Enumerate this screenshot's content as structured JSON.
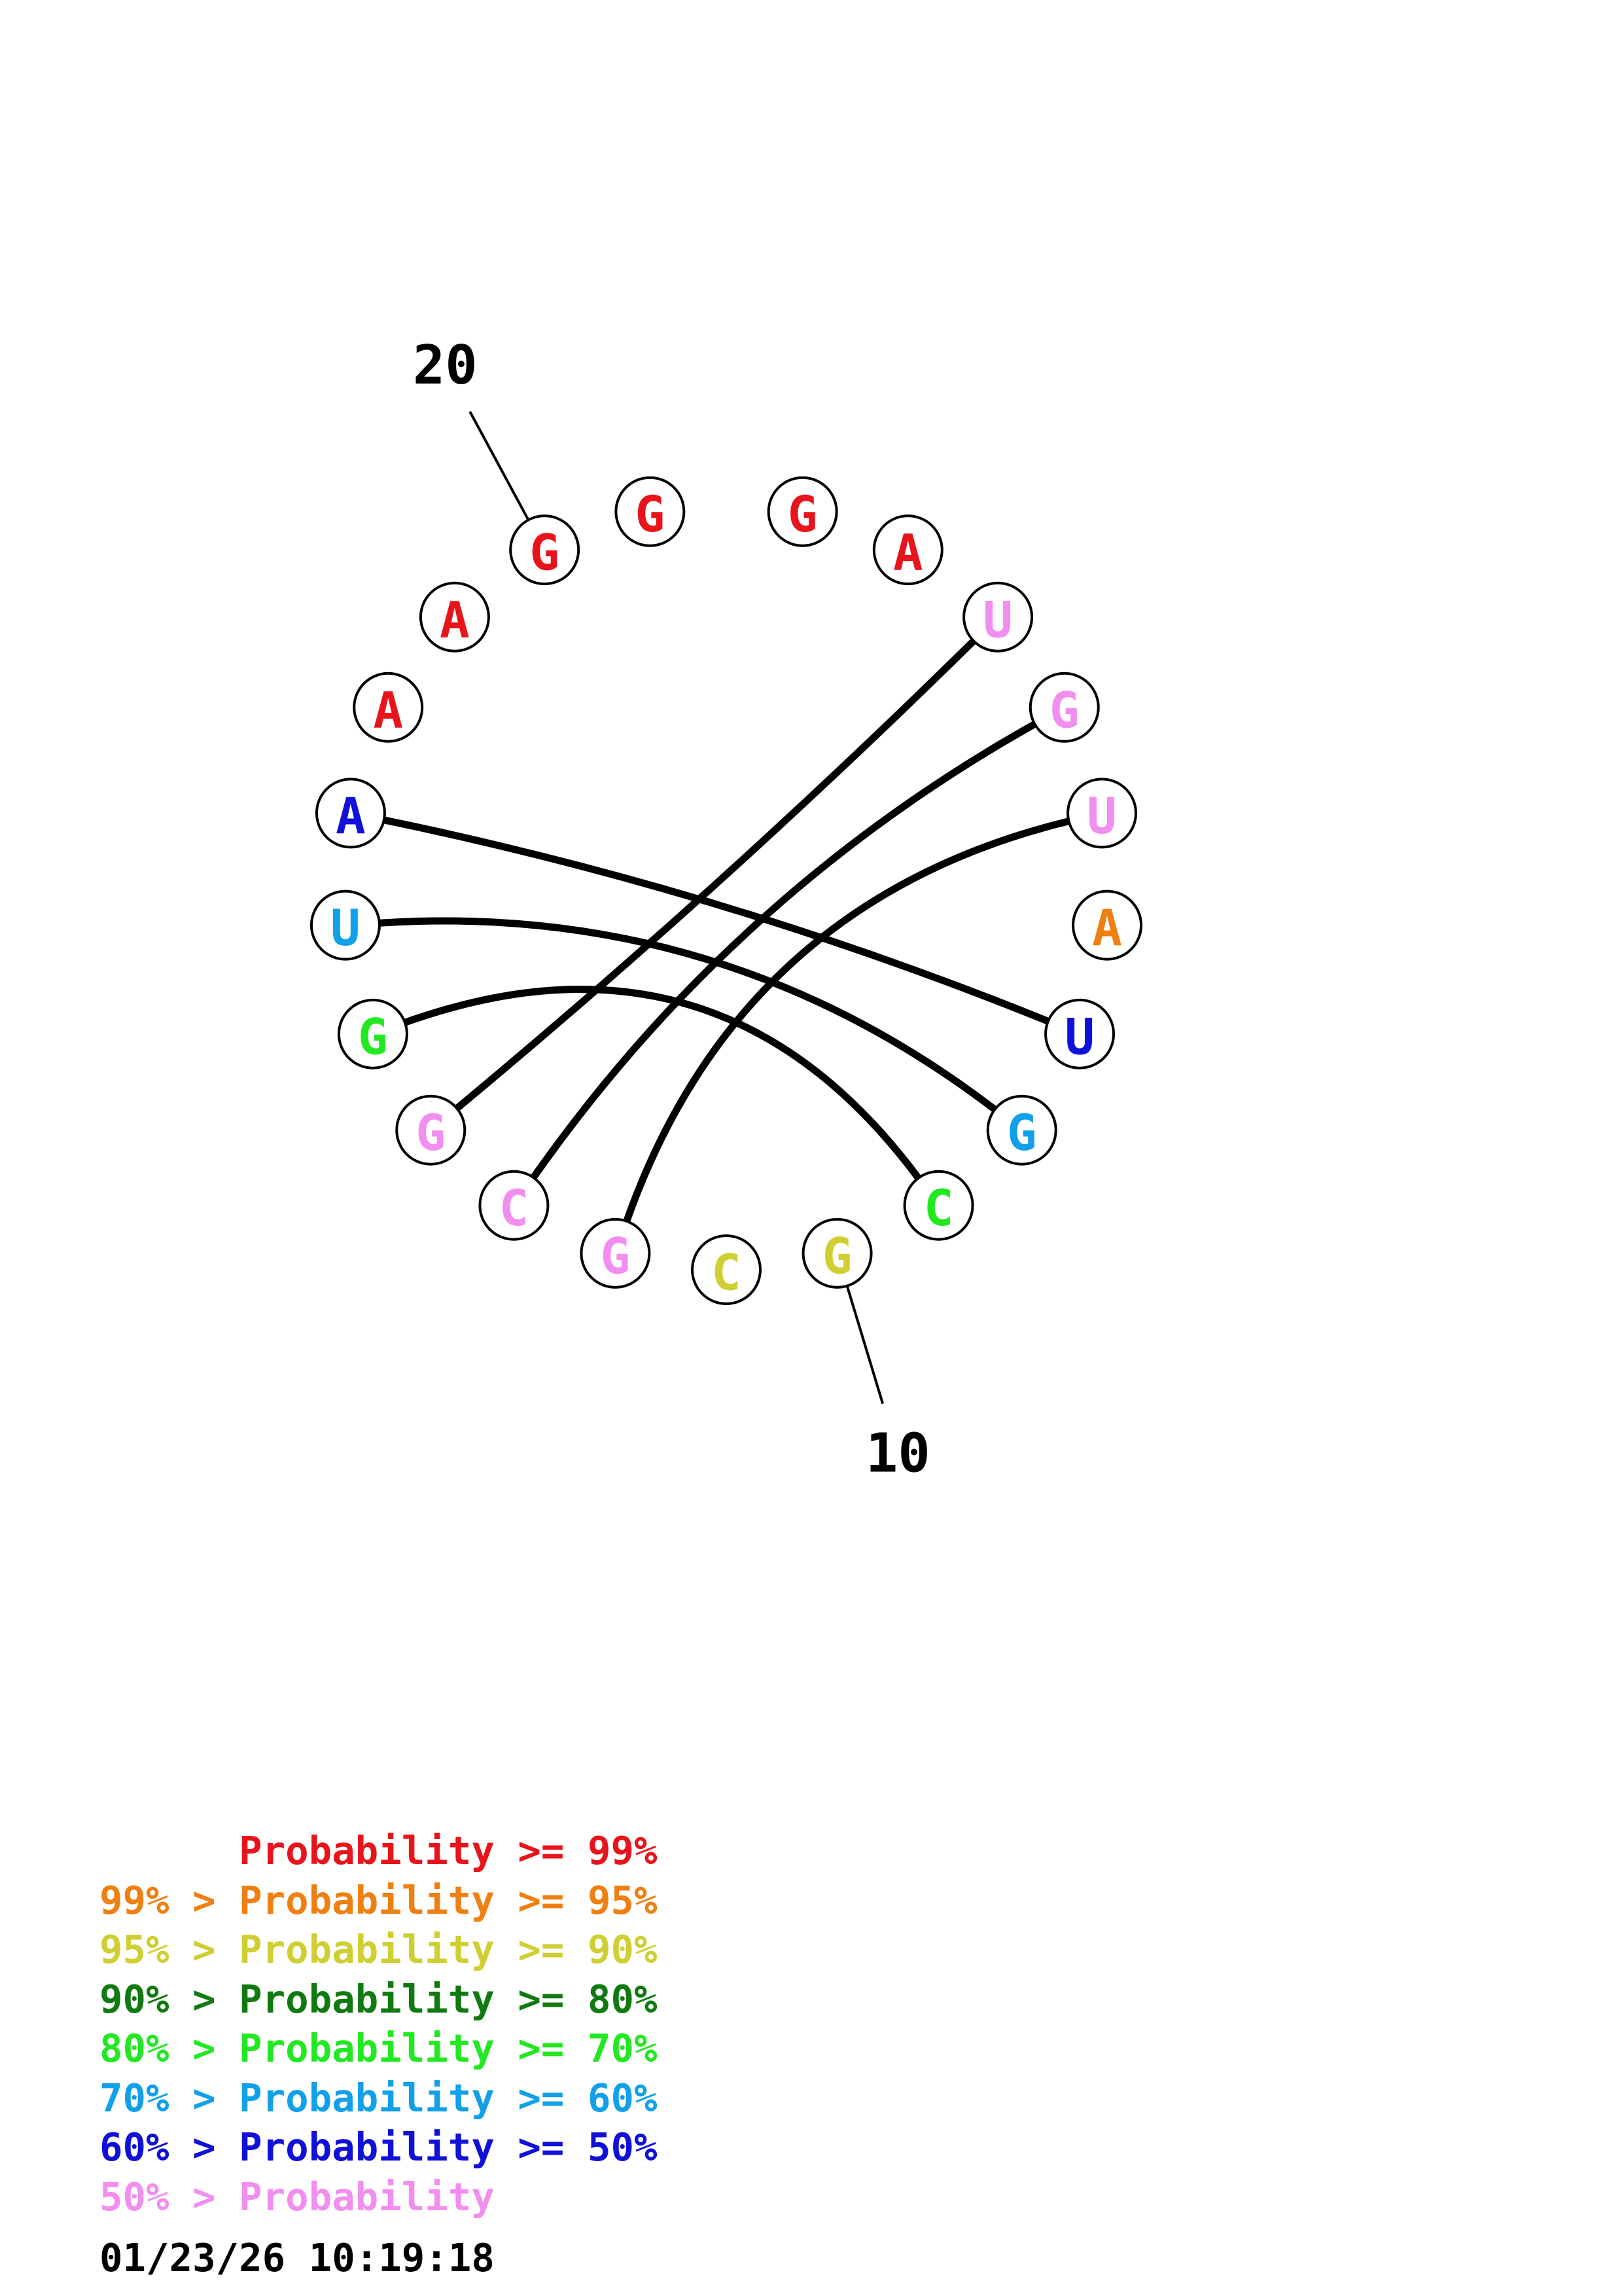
{
  "colors": {
    "p99": "#e8141c",
    "p95": "#f07f12",
    "p90": "#cfcf34",
    "p80": "#107a10",
    "p70": "#22e822",
    "p60": "#12a0e8",
    "p50": "#1010d8",
    "plow": "#f28ef0"
  },
  "sequence": [
    {
      "index": 1,
      "base": "G",
      "color": "p99"
    },
    {
      "index": 2,
      "base": "A",
      "color": "p99"
    },
    {
      "index": 3,
      "base": "U",
      "color": "plow"
    },
    {
      "index": 4,
      "base": "G",
      "color": "plow"
    },
    {
      "index": 5,
      "base": "U",
      "color": "plow"
    },
    {
      "index": 6,
      "base": "A",
      "color": "p95"
    },
    {
      "index": 7,
      "base": "U",
      "color": "p50"
    },
    {
      "index": 8,
      "base": "G",
      "color": "p60"
    },
    {
      "index": 9,
      "base": "C",
      "color": "p70"
    },
    {
      "index": 10,
      "base": "G",
      "color": "p90"
    },
    {
      "index": 11,
      "base": "C",
      "color": "p90"
    },
    {
      "index": 12,
      "base": "G",
      "color": "plow"
    },
    {
      "index": 13,
      "base": "C",
      "color": "plow"
    },
    {
      "index": 14,
      "base": "G",
      "color": "plow"
    },
    {
      "index": 15,
      "base": "G",
      "color": "p70"
    },
    {
      "index": 16,
      "base": "U",
      "color": "p60"
    },
    {
      "index": 17,
      "base": "A",
      "color": "p50"
    },
    {
      "index": 18,
      "base": "A",
      "color": "p99"
    },
    {
      "index": 19,
      "base": "A",
      "color": "p99"
    },
    {
      "index": 20,
      "base": "G",
      "color": "p99"
    },
    {
      "index": 21,
      "base": "G",
      "color": "p99"
    }
  ],
  "pairs": [
    [
      3,
      14
    ],
    [
      4,
      13
    ],
    [
      5,
      12
    ],
    [
      7,
      17
    ],
    [
      8,
      16
    ],
    [
      9,
      15
    ]
  ],
  "position_labels": [
    {
      "index": 10,
      "text": "10"
    },
    {
      "index": 20,
      "text": "20"
    }
  ],
  "legend": [
    {
      "prefix": "",
      "text": "Probability >= 99%",
      "color": "p99"
    },
    {
      "prefix": "99% > ",
      "text": "Probability >= 95%",
      "color": "p95"
    },
    {
      "prefix": "95% > ",
      "text": "Probability >= 90%",
      "color": "p90"
    },
    {
      "prefix": "90% > ",
      "text": "Probability >= 80%",
      "color": "p80"
    },
    {
      "prefix": "80% > ",
      "text": "Probability >= 70%",
      "color": "p70"
    },
    {
      "prefix": "70% > ",
      "text": "Probability >= 60%",
      "color": "p60"
    },
    {
      "prefix": "60% > ",
      "text": "Probability >= 50%",
      "color": "p50"
    },
    {
      "prefix": "50% > ",
      "text": "Probability",
      "color": "plow"
    }
  ],
  "timestamp": "01/23/26 10:19:18"
}
